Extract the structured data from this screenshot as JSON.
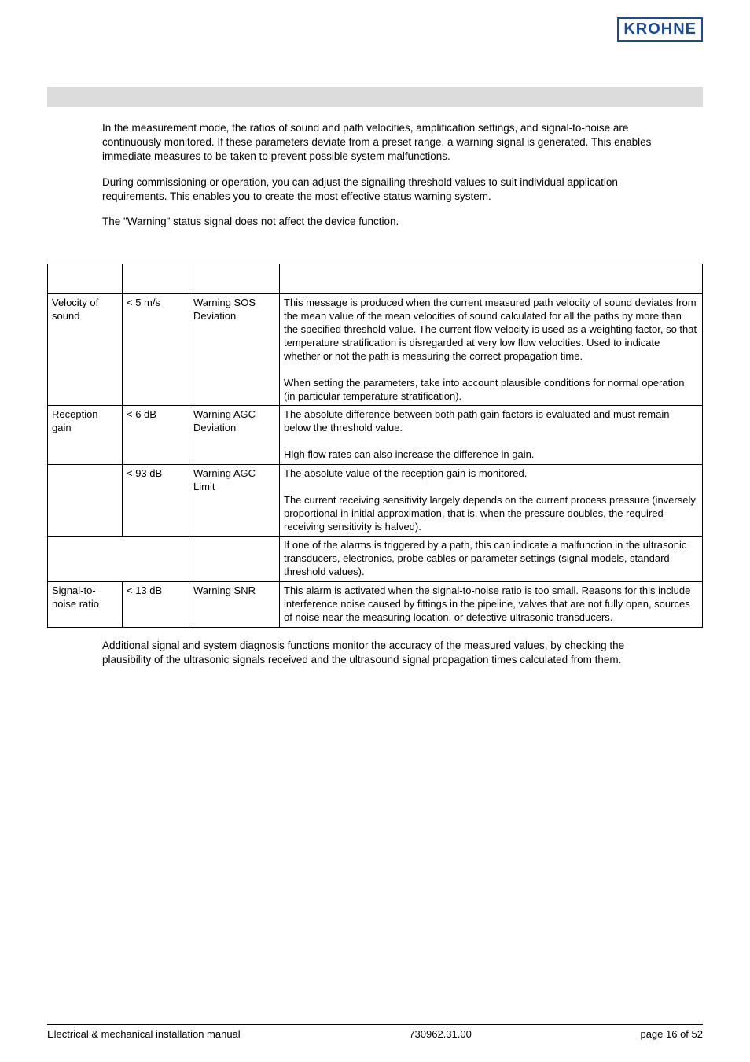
{
  "logo": "KROHNE",
  "intro": {
    "p1": "In the measurement mode, the ratios of sound and path velocities, amplification settings, and signal-to-noise are continuously monitored. If these parameters deviate from a preset range, a warning signal is generated. This enables immediate measures to be taken to prevent possible system malfunctions.",
    "p2": "During commissioning or operation, you can adjust the signalling threshold values to suit individual application requirements. This enables you to create the most effective status warning system.",
    "p3": "The \"Warning\" status signal does not affect the device function."
  },
  "rows": [
    {
      "c1": "Velocity of sound",
      "c2": "< 5 m/s",
      "c3": "Warning SOS Deviation",
      "c4": "This message is produced when the current measured path velocity of sound deviates from the mean value of the mean velocities of sound calculated for all the paths by more than the specified threshold value. The current flow velocity is used as a weighting factor, so that temperature stratification is disregarded at very low flow velocities. Used to indicate whether or not the path is measuring the correct propagation time.\n\nWhen setting the parameters, take into account plausible conditions for normal operation (in particular temperature stratification)."
    },
    {
      "c1": "Reception gain",
      "c2": "< 6 dB",
      "c3": "Warning AGC Deviation",
      "c4": "The absolute difference between both path gain factors is evaluated and must remain below the threshold value.\n\nHigh flow rates can also increase the difference in gain."
    },
    {
      "c1": "",
      "c2": "< 93 dB",
      "c3": "Warning AGC Limit",
      "c4": "The absolute value of the reception gain is monitored.\n\nThe current receiving sensitivity largely depends on the current process pressure (inversely proportional in initial approximation, that is, when the pressure doubles, the required receiving sensitivity is halved)."
    },
    {
      "c1": "",
      "c2": "",
      "c3": "",
      "c4": "If one of the alarms is triggered by a path, this can indicate a malfunction in the ultrasonic transducers, electronics, probe cables or parameter settings (signal models, standard threshold values)."
    },
    {
      "c1": "Signal-to-noise ratio",
      "c2": "< 13 dB",
      "c3": "Warning SNR",
      "c4": "This alarm is activated when the signal-to-noise ratio is too small. Reasons for this include interference noise caused by fittings in the pipeline, valves that are not fully open, sources of noise near the measuring location, or defective ultrasonic transducers."
    }
  ],
  "footnote": "Additional signal and system diagnosis functions monitor the accuracy of the measured values, by checking the plausibility of the ultrasonic signals received and the ultrasound signal propagation times calculated from them.",
  "footer": {
    "left": "Electrical & mechanical installation manual",
    "mid": "730962.31.00",
    "right": "page 16 of 52"
  }
}
